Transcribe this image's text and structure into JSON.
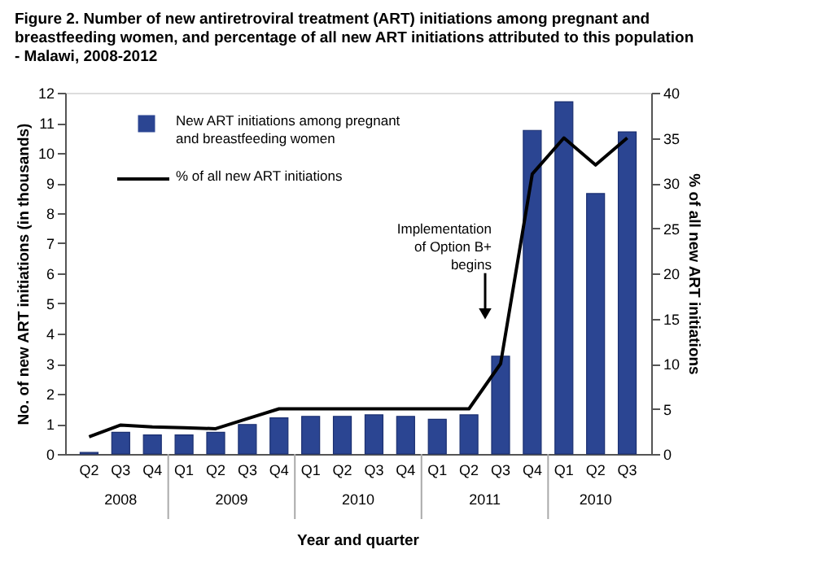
{
  "chart_data": {
    "type": "bar",
    "title": "Figure 2. Number of new antiretroviral treatment (ART) initiations among pregnant and breastfeeding women, and percentage of all new ART initiations attributed to this population - Malawi, 2008-2012",
    "xlabel": "Year and quarter",
    "ylabel": "No. of new ART initiations (in thousands)",
    "y2label": "% of all new ART initiations",
    "categories": [
      "Q2",
      "Q3",
      "Q4",
      "Q1",
      "Q2",
      "Q3",
      "Q4",
      "Q1",
      "Q2",
      "Q3",
      "Q4",
      "Q1",
      "Q2",
      "Q3",
      "Q4",
      "Q1",
      "Q2",
      "Q3"
    ],
    "annotations": [
      "Implementation of Option B+ begins",
      "2008",
      "2009",
      "2010",
      "2011",
      "2010"
    ],
    "series": [
      {
        "name": "New ART initiations among pregnant and breastfeeding women",
        "color": "#2b4592",
        "values": [
          0.05,
          0.72,
          0.63,
          0.63,
          0.72,
          0.98,
          1.2,
          1.25,
          1.25,
          1.3,
          1.25,
          1.15,
          1.3,
          3.25,
          10.75,
          11.7,
          8.65,
          10.7
        ]
      },
      {
        "name": "% of all new ART initiations",
        "type": "line",
        "axis": "y2",
        "color": "#000000",
        "values": [
          1.9,
          3.2,
          3.0,
          2.9,
          2.8,
          3.9,
          5,
          5,
          5,
          5,
          5,
          5,
          5,
          10,
          31,
          35,
          32,
          35
        ]
      }
    ],
    "ylim": [
      0,
      12
    ],
    "yticks": [
      0,
      1,
      2,
      3,
      4,
      5,
      6,
      7,
      8,
      9,
      10,
      11,
      12
    ],
    "y2lim": [
      0,
      40
    ],
    "y2ticks": [
      0,
      5,
      10,
      15,
      20,
      25,
      30,
      35,
      40
    ],
    "legend": "top left",
    "grid": false,
    "marker": "none",
    "line_style": "solid"
  }
}
